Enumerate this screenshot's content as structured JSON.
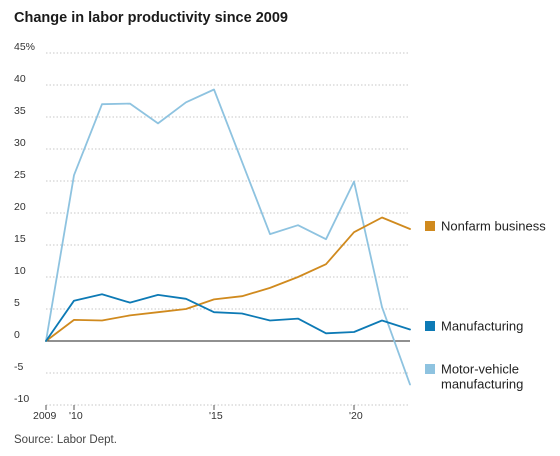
{
  "chart_data": {
    "type": "line",
    "title": "Change in labor productivity since 2009",
    "source": "Source: Labor Dept.",
    "x": [
      2009,
      2010,
      2011,
      2012,
      2013,
      2014,
      2015,
      2016,
      2017,
      2018,
      2019,
      2020,
      2021,
      2022
    ],
    "xticks": [
      {
        "value": 2009,
        "label": "2009"
      },
      {
        "value": 2010,
        "label": "'10"
      },
      {
        "value": 2015,
        "label": "'15"
      },
      {
        "value": 2020,
        "label": "'20"
      }
    ],
    "yticks": [
      {
        "value": 45,
        "label": "45%"
      },
      {
        "value": 40,
        "label": "40"
      },
      {
        "value": 35,
        "label": "35"
      },
      {
        "value": 30,
        "label": "30"
      },
      {
        "value": 25,
        "label": "25"
      },
      {
        "value": 20,
        "label": "20"
      },
      {
        "value": 15,
        "label": "15"
      },
      {
        "value": 10,
        "label": "10"
      },
      {
        "value": 5,
        "label": "5"
      },
      {
        "value": 0,
        "label": "0"
      },
      {
        "value": -5,
        "label": "-5"
      },
      {
        "value": -10,
        "label": "-10"
      }
    ],
    "ylim": [
      -10,
      45
    ],
    "xlim": [
      2009,
      2022
    ],
    "grid": "horizontal dotted",
    "series": [
      {
        "name": "Nonfarm business",
        "color": "#d08a1e",
        "values": [
          0,
          3.3,
          3.2,
          4.0,
          4.5,
          5.0,
          6.5,
          7.0,
          8.3,
          10.0,
          12.0,
          17.0,
          19.3,
          17.5
        ]
      },
      {
        "name": "Manufacturing",
        "color": "#0d7ab5",
        "values": [
          0,
          6.3,
          7.3,
          6.0,
          7.2,
          6.6,
          4.5,
          4.3,
          3.2,
          3.5,
          1.2,
          1.4,
          3.2,
          1.8
        ]
      },
      {
        "name": "Motor-vehicle manufacturing",
        "color": "#8ec3e0",
        "values": [
          0,
          25.9,
          37.0,
          37.1,
          34.0,
          37.3,
          39.3,
          28.0,
          16.7,
          18.1,
          15.9,
          24.9,
          5.3,
          -6.8
        ]
      }
    ],
    "legend": [
      {
        "label": "Nonfarm business",
        "color": "#d08a1e"
      },
      {
        "label": "Manufacturing",
        "color": "#0d7ab5"
      },
      {
        "label": "Motor-vehicle manufacturing",
        "color": "#8ec3e0",
        "lines": [
          "Motor-vehicle",
          "manufacturing"
        ]
      }
    ],
    "legend_position": "right"
  }
}
